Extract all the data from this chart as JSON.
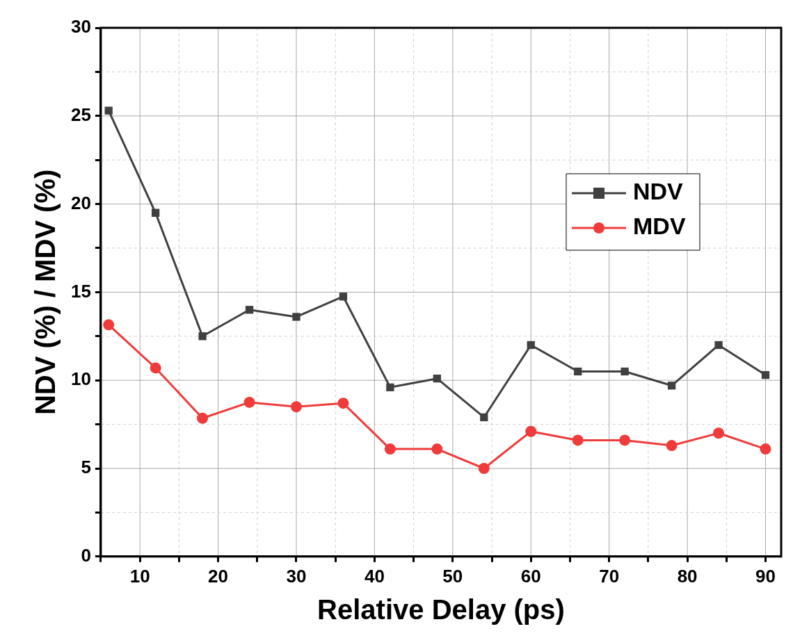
{
  "chart_data": {
    "type": "line",
    "xlabel": "Relative Delay (ps)",
    "ylabel": "NDV (%) / MDV (%)",
    "x": [
      6,
      12,
      18,
      24,
      30,
      36,
      42,
      48,
      54,
      60,
      66,
      72,
      78,
      84,
      90
    ],
    "series": [
      {
        "name": "NDV",
        "color": "#404040",
        "marker": "square",
        "values": [
          25.3,
          19.5,
          12.5,
          14.0,
          13.6,
          14.75,
          9.6,
          10.1,
          7.9,
          12.0,
          10.5,
          10.5,
          9.7,
          12.0,
          10.3
        ]
      },
      {
        "name": "MDV",
        "color": "#ef3b3b",
        "marker": "circle",
        "values": [
          13.15,
          10.7,
          7.85,
          8.75,
          8.5,
          8.7,
          6.1,
          6.1,
          5.0,
          7.1,
          6.6,
          6.6,
          6.3,
          7.0,
          6.1
        ]
      }
    ],
    "xlim": [
      5,
      92
    ],
    "xticks": [
      {
        "value": 5,
        "label": null
      },
      10,
      {
        "value": 15,
        "label": null
      },
      20,
      {
        "value": 25,
        "label": null
      },
      30,
      {
        "value": 35,
        "label": null
      },
      40,
      {
        "value": 45,
        "label": null
      },
      50,
      {
        "value": 55,
        "label": null
      },
      60,
      {
        "value": 65,
        "label": null
      },
      70,
      {
        "value": 75,
        "label": null
      },
      80,
      {
        "value": 85,
        "label": null
      },
      90
    ],
    "ylim": [
      0,
      30
    ],
    "yticks": [
      0,
      {
        "value": 2.5,
        "label": null
      },
      5,
      {
        "value": 7.5,
        "label": null
      },
      10,
      {
        "value": 12.5,
        "label": null
      },
      15,
      {
        "value": 17.5,
        "label": null
      },
      20,
      {
        "value": 22.5,
        "label": null
      },
      25,
      {
        "value": 27.5,
        "label": null
      },
      30
    ],
    "grid": true,
    "legend": "top right",
    "line_style": "solid"
  }
}
